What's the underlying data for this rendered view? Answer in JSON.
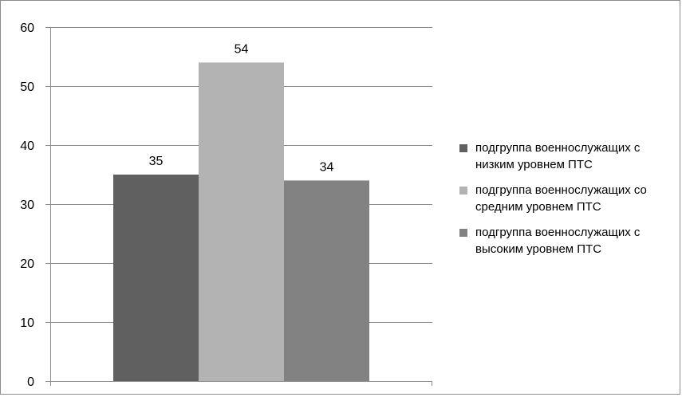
{
  "chart_data": {
    "type": "bar",
    "categories": [
      ""
    ],
    "series": [
      {
        "name": "подгруппа военнослужащих с низким уровнем ПТС",
        "values": [
          35
        ],
        "color": "#606060"
      },
      {
        "name": "подгруппа военнослужащих со средним уровнем ПТС",
        "values": [
          54
        ],
        "color": "#b3b3b3"
      },
      {
        "name": "подгруппа военнослужащих с высоким уровнем ПТС",
        "values": [
          34
        ],
        "color": "#828282"
      }
    ],
    "y_ticks": [
      0,
      10,
      20,
      30,
      40,
      50,
      60
    ],
    "ylim": [
      0,
      60
    ],
    "grid": true,
    "legend": "right",
    "data_labels": [
      "35",
      "54",
      "34"
    ],
    "legend_labels": [
      "подгруппа военнослужащих с низким уровнем ПТС",
      "подгруппа военнослужащих со средним уровнем ПТС",
      "подгруппа военнослужащих с высоким уровнем ПТС"
    ],
    "title": "",
    "xlabel": "",
    "ylabel": ""
  }
}
